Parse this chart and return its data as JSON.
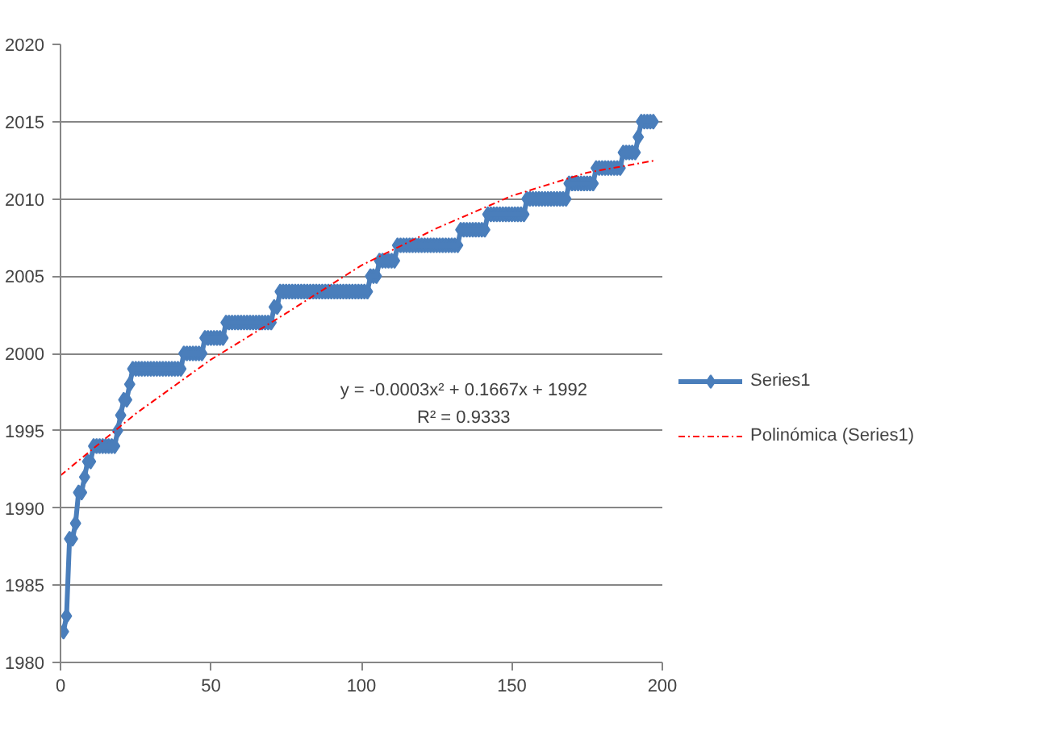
{
  "chart_data": {
    "type": "line",
    "xlim": [
      0,
      200
    ],
    "xticks": [
      0,
      50,
      100,
      150,
      200
    ],
    "ylim": [
      1980,
      2020
    ],
    "yticks": [
      1980,
      1985,
      1990,
      1995,
      2000,
      2005,
      2010,
      2015,
      2020
    ],
    "grid": "y",
    "legend": "right",
    "annotations": [
      "y = -0.0003x² + 0.1667x + 1992",
      "R² = 0.9333"
    ],
    "series": [
      {
        "name": "Series1",
        "color": "#4a7ebb",
        "marker": "diamond",
        "line_style": "solid",
        "x": [
          1,
          2,
          3,
          4,
          5,
          6,
          7,
          8,
          9,
          10,
          11,
          12,
          13,
          14,
          15,
          16,
          17,
          18,
          19,
          20,
          21,
          22,
          23,
          24,
          25,
          26,
          27,
          28,
          29,
          30,
          31,
          32,
          33,
          34,
          35,
          36,
          37,
          38,
          39,
          40,
          41,
          42,
          43,
          44,
          45,
          46,
          47,
          48,
          49,
          50,
          51,
          52,
          53,
          54,
          55,
          56,
          57,
          58,
          59,
          60,
          61,
          62,
          63,
          64,
          65,
          66,
          67,
          68,
          69,
          70,
          71,
          72,
          73,
          74,
          75,
          76,
          77,
          78,
          79,
          80,
          81,
          82,
          83,
          84,
          85,
          86,
          87,
          88,
          89,
          90,
          91,
          92,
          93,
          94,
          95,
          96,
          97,
          98,
          99,
          100,
          101,
          102,
          103,
          104,
          105,
          106,
          107,
          108,
          109,
          110,
          111,
          112,
          113,
          114,
          115,
          116,
          117,
          118,
          119,
          120,
          121,
          122,
          123,
          124,
          125,
          126,
          127,
          128,
          129,
          130,
          131,
          132,
          133,
          134,
          135,
          136,
          137,
          138,
          139,
          140,
          141,
          142,
          143,
          144,
          145,
          146,
          147,
          148,
          149,
          150,
          151,
          152,
          153,
          154,
          155,
          156,
          157,
          158,
          159,
          160,
          161,
          162,
          163,
          164,
          165,
          166,
          167,
          168,
          169,
          170,
          171,
          172,
          173,
          174,
          175,
          176,
          177,
          178,
          179,
          180,
          181,
          182,
          183,
          184,
          185,
          186,
          187,
          188,
          189,
          190,
          191,
          192,
          193,
          194,
          195,
          196,
          197
        ],
        "values": [
          1982,
          1983,
          1988,
          1988,
          1989,
          1991,
          1991,
          1992,
          1993,
          1993,
          1994,
          1994,
          1994,
          1994,
          1994,
          1994,
          1994,
          1994,
          1995,
          1996,
          1997,
          1997,
          1998,
          1999,
          1999,
          1999,
          1999,
          1999,
          1999,
          1999,
          1999,
          1999,
          1999,
          1999,
          1999,
          1999,
          1999,
          1999,
          1999,
          1999,
          2000,
          2000,
          2000,
          2000,
          2000,
          2000,
          2000,
          2001,
          2001,
          2001,
          2001,
          2001,
          2001,
          2001,
          2002,
          2002,
          2002,
          2002,
          2002,
          2002,
          2002,
          2002,
          2002,
          2002,
          2002,
          2002,
          2002,
          2002,
          2002,
          2002,
          2003,
          2003,
          2004,
          2004,
          2004,
          2004,
          2004,
          2004,
          2004,
          2004,
          2004,
          2004,
          2004,
          2004,
          2004,
          2004,
          2004,
          2004,
          2004,
          2004,
          2004,
          2004,
          2004,
          2004,
          2004,
          2004,
          2004,
          2004,
          2004,
          2004,
          2004,
          2004,
          2005,
          2005,
          2005,
          2006,
          2006,
          2006,
          2006,
          2006,
          2006,
          2007,
          2007,
          2007,
          2007,
          2007,
          2007,
          2007,
          2007,
          2007,
          2007,
          2007,
          2007,
          2007,
          2007,
          2007,
          2007,
          2007,
          2007,
          2007,
          2007,
          2007,
          2008,
          2008,
          2008,
          2008,
          2008,
          2008,
          2008,
          2008,
          2008,
          2009,
          2009,
          2009,
          2009,
          2009,
          2009,
          2009,
          2009,
          2009,
          2009,
          2009,
          2009,
          2009,
          2010,
          2010,
          2010,
          2010,
          2010,
          2010,
          2010,
          2010,
          2010,
          2010,
          2010,
          2010,
          2010,
          2010,
          2011,
          2011,
          2011,
          2011,
          2011,
          2011,
          2011,
          2011,
          2011,
          2012,
          2012,
          2012,
          2012,
          2012,
          2012,
          2012,
          2012,
          2012,
          2013,
          2013,
          2013,
          2013,
          2013,
          2014,
          2015,
          2015,
          2015,
          2015,
          2015
        ]
      },
      {
        "name": "Polinómica (Series1)",
        "color": "#ff0000",
        "marker": "none",
        "line_style": "dashed",
        "x": [
          0,
          25,
          50,
          75,
          100,
          125,
          150,
          175,
          198
        ],
        "values": [
          1992.1,
          1996.1,
          1999.6,
          2002.6,
          2005.7,
          2008.1,
          2010.2,
          2011.7,
          2012.5
        ]
      }
    ]
  }
}
